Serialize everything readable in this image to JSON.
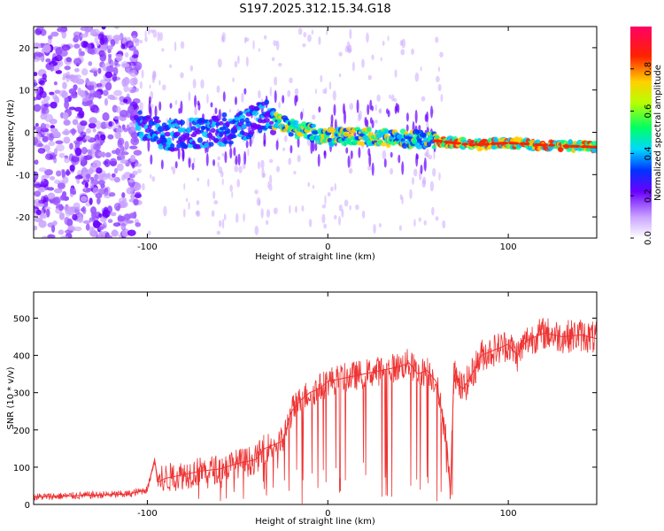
{
  "title": "S197.2025.312.15.34.G18",
  "chart_data": [
    {
      "type": "heatmap",
      "xlabel": "Height of straight line (km)",
      "ylabel": "Frequency (Hz)",
      "xlim": [
        -163,
        149
      ],
      "ylim": [
        -25,
        25
      ],
      "xticks": [
        -100,
        0,
        100
      ],
      "yticks": [
        -20,
        -10,
        0,
        10,
        20
      ],
      "colorbar": {
        "label": "Normalized spectral amplitude",
        "range": [
          0,
          1
        ],
        "ticks": [
          0.0,
          0.2,
          0.4,
          0.6,
          0.8
        ]
      },
      "ridge": {
        "description_points_km_hz": [
          [
            -105,
            2
          ],
          [
            -90,
            -1
          ],
          [
            -70,
            0
          ],
          [
            -50,
            1
          ],
          [
            -35,
            4
          ],
          [
            -20,
            1
          ],
          [
            0,
            -1
          ],
          [
            20,
            -1
          ],
          [
            40,
            -1.5
          ],
          [
            60,
            -2
          ],
          [
            80,
            -3
          ],
          [
            100,
            -2.5
          ],
          [
            120,
            -3
          ],
          [
            148,
            -3.5
          ]
        ]
      }
    },
    {
      "type": "line",
      "xlabel": "Height of straight line (km)",
      "ylabel": "SNR (10 * v/v)",
      "xlim": [
        -163,
        149
      ],
      "ylim": [
        0,
        570
      ],
      "xticks": [
        -100,
        0,
        100
      ],
      "yticks": [
        0,
        100,
        200,
        300,
        400,
        500
      ],
      "color": "#ee3333",
      "series": [
        {
          "name": "SNR",
          "x": [
            -163,
            -150,
            -130,
            -110,
            -100,
            -96,
            -94,
            -90,
            -80,
            -70,
            -60,
            -50,
            -40,
            -35,
            -25,
            -20,
            -15,
            -10,
            -5,
            0,
            10,
            20,
            30,
            40,
            45,
            50,
            55,
            60,
            65,
            68,
            70,
            72,
            75,
            80,
            85,
            90,
            95,
            100,
            105,
            110,
            120,
            130,
            140,
            149
          ],
          "values": [
            20,
            22,
            25,
            28,
            40,
            120,
            60,
            70,
            80,
            90,
            95,
            110,
            120,
            150,
            170,
            250,
            280,
            300,
            310,
            330,
            340,
            350,
            360,
            370,
            380,
            350,
            360,
            330,
            200,
            30,
            380,
            320,
            310,
            350,
            400,
            410,
            420,
            430,
            400,
            440,
            460,
            450,
            455,
            445
          ]
        }
      ]
    }
  ]
}
